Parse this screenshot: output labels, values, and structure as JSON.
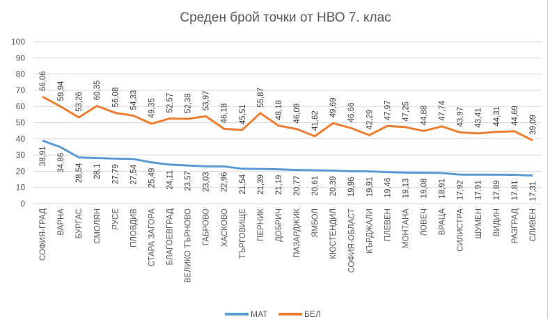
{
  "chart_data": {
    "type": "line",
    "title": "Среден брой точки от НВО 7. клас",
    "xlabel": "",
    "ylabel": "",
    "ylim": [
      0,
      100
    ],
    "yticks": [
      0,
      10,
      20,
      30,
      40,
      50,
      60,
      70,
      80,
      90,
      100
    ],
    "grid": true,
    "legend_position": "bottom",
    "categories": [
      "СОФИЯ-ГРАД",
      "ВАРНА",
      "БУРГАС",
      "СМОЛЯН",
      "РУСЕ",
      "ПЛОВДИВ",
      "СТАРА ЗАГОРА",
      "БЛАГОЕВГРАД",
      "ВЕЛИКО ТЪРНОВО",
      "ГАБРОВО",
      "ХАСКОВО",
      "ТЪРГОВИЩЕ",
      "ПЕРНИК",
      "ДОБРИЧ",
      "ПАЗАРДЖИК",
      "ЯМБОЛ",
      "КЮСТЕНДИЛ",
      "СОФИЯ-ОБЛАСТ",
      "КЪРДЖАЛИ",
      "ПЛЕВЕН",
      "МОНТАНА",
      "ЛОВЕЧ",
      "ВРАЦА",
      "СИЛИСТРА",
      "ШУМЕН",
      "ВИДИН",
      "РАЗГРАД",
      "СЛИВЕН"
    ],
    "series": [
      {
        "name": "МАТ",
        "color": "#5B9BD5",
        "values": [
          38.91,
          34.86,
          28.54,
          28.1,
          27.79,
          27.54,
          25.49,
          24.11,
          23.57,
          23.03,
          22.96,
          21.54,
          21.39,
          21.19,
          20.77,
          20.61,
          20.39,
          19.96,
          19.91,
          19.46,
          19.13,
          19.08,
          18.91,
          17.92,
          17.91,
          17.89,
          17.81,
          17.31
        ]
      },
      {
        "name": "БЕЛ",
        "color": "#ED7D31",
        "values": [
          66.06,
          59.94,
          53.26,
          60.35,
          56.08,
          54.33,
          49.35,
          52.57,
          52.38,
          53.97,
          46.18,
          45.51,
          55.87,
          48.18,
          46.09,
          41.62,
          49.69,
          46.66,
          42.29,
          47.97,
          47.25,
          44.88,
          47.74,
          43.97,
          43.41,
          44.31,
          44.69,
          39.09
        ]
      }
    ]
  }
}
